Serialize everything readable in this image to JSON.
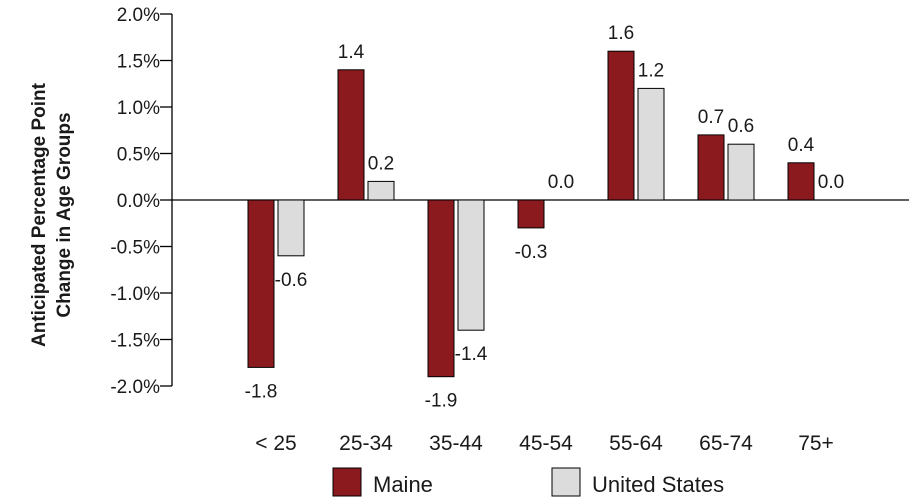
{
  "chart_data": {
    "type": "bar",
    "title": "",
    "xlabel": "",
    "ylabel": [
      "Anticipated Percentage Point",
      "Change in Age Groups"
    ],
    "categories": [
      "< 25",
      "25-34",
      "35-44",
      "45-54",
      "55-64",
      "65-74",
      "75+"
    ],
    "series": [
      {
        "name": "Maine",
        "color": "#8b1a1f",
        "values": [
          -1.8,
          1.4,
          -1.9,
          -0.3,
          1.6,
          0.7,
          0.4
        ],
        "labels": [
          "-1.8",
          "1.4",
          "-1.9",
          "-0.3",
          "1.6",
          "0.7",
          "0.4"
        ]
      },
      {
        "name": "United States",
        "color": "#dcdcdc",
        "values": [
          -0.6,
          0.2,
          -1.4,
          0.0,
          1.2,
          0.6,
          0.0
        ],
        "labels": [
          "-0.6",
          "0.2",
          "-1.4",
          "0.0",
          "1.2",
          "0.6",
          "0.0"
        ]
      }
    ],
    "ylim": [
      -2.0,
      2.0
    ],
    "yticks": [
      2.0,
      1.5,
      1.0,
      0.5,
      0.0,
      -0.5,
      -1.0,
      -1.5,
      -2.0
    ],
    "ytick_labels": [
      "2.0%",
      "1.5%",
      "1.0%",
      "0.5%",
      "0.0%",
      "-0.5%",
      "-1.0%",
      "-1.5%",
      "-2.0%"
    ],
    "grid": false,
    "legend_position": "bottom-center"
  }
}
